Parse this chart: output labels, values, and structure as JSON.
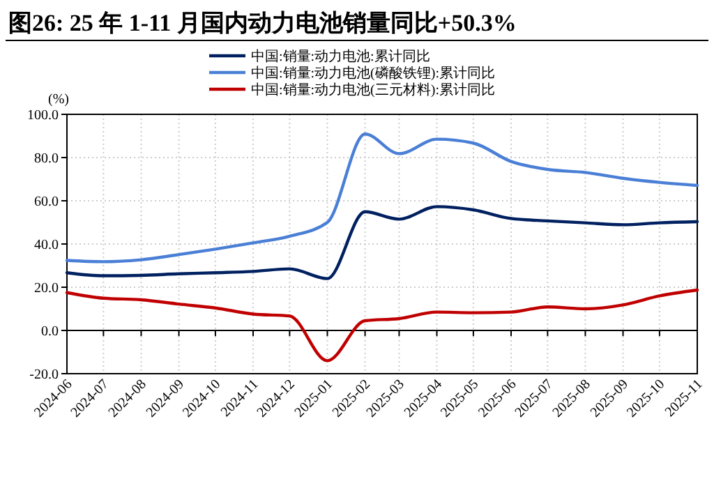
{
  "chart_data": {
    "type": "line",
    "title": "图26:  25 年 1-11 月国内动力电池销量同比+50.3%",
    "ylabel": "(%)",
    "x": [
      "2024-06",
      "2024-07",
      "2024-08",
      "2024-09",
      "2024-10",
      "2024-11",
      "2024-12",
      "2025-01",
      "2025-02",
      "2025-03",
      "2025-04",
      "2025-05",
      "2025-06",
      "2025-07",
      "2025-08",
      "2025-09",
      "2025-10",
      "2025-11"
    ],
    "series": [
      {
        "name": "中国:销量:动力电池:累计同比",
        "color": "#002060",
        "values": [
          26.7,
          25.3,
          25.5,
          26.2,
          26.7,
          27.3,
          28.5,
          24,
          54.9,
          51.5,
          57.3,
          55.8,
          51.8,
          50.7,
          49.8,
          48.9,
          49.8,
          50.3
        ]
      },
      {
        "name": "中国:销量:动力电池(磷酸铁锂):累计同比",
        "color": "#4a7fd6",
        "values": [
          32.4,
          31.8,
          32.7,
          35.1,
          37.6,
          40.5,
          43.6,
          50,
          90.9,
          81.8,
          88.5,
          86.7,
          78.2,
          74.5,
          73.1,
          70.4,
          68.5,
          67.1
        ]
      },
      {
        "name": "中国:销量:动力电池(三元材料):累计同比",
        "color": "#c00000",
        "values": [
          17.5,
          14.9,
          14.2,
          12.2,
          10.4,
          7.6,
          6.7,
          -14,
          4.5,
          5.5,
          8.5,
          8.2,
          8.5,
          10.9,
          10,
          11.8,
          16,
          18.7
        ]
      }
    ],
    "xlim": [
      "2024-06",
      "2025-11"
    ],
    "xticks": [
      "2024-06",
      "2024-07",
      "2024-08",
      "2024-09",
      "2024-10",
      "2024-11",
      "2024-12",
      "2025-01",
      "2025-02",
      "2025-03",
      "2025-04",
      "2025-05",
      "2025-06",
      "2025-07",
      "2025-08",
      "2025-09",
      "2025-10",
      "2025-11"
    ],
    "ylim": [
      -20,
      100
    ],
    "yticks": [
      {
        "value": -20,
        "label": "-20.0"
      },
      {
        "value": 0,
        "label": "0.0"
      },
      {
        "value": 20,
        "label": "20.0"
      },
      {
        "value": 40,
        "label": "40.0"
      },
      {
        "value": 60,
        "label": "60.0"
      },
      {
        "value": 80,
        "label": "80.0"
      },
      {
        "value": 100,
        "label": "100.0"
      }
    ],
    "grid": true,
    "legend": "top",
    "marker": "none",
    "line_style": "solid"
  }
}
